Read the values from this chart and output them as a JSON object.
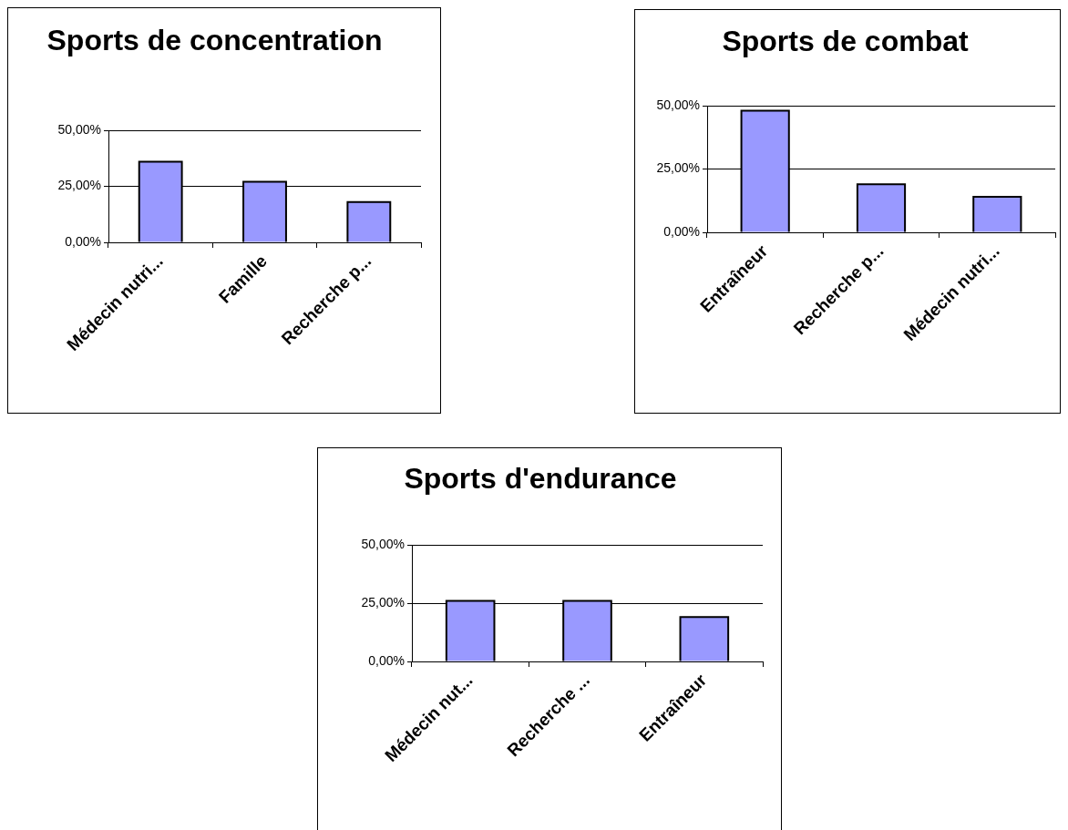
{
  "chart_data": [
    {
      "type": "bar",
      "title": "Sports de concentration",
      "categories": [
        "Médecin nutri...",
        "Famille",
        "Recherche p..."
      ],
      "values": [
        36,
        27,
        18
      ],
      "color": "#9999ff",
      "ylim": [
        0,
        50
      ],
      "yticks": [
        {
          "value": 0,
          "label": "0,00%"
        },
        {
          "value": 25,
          "label": "25,00%"
        },
        {
          "value": 50,
          "label": "50,00%"
        }
      ],
      "grid": "y"
    },
    {
      "type": "bar",
      "title": "Sports de combat",
      "categories": [
        "Entraîneur",
        "Recherche p...",
        "Médecin nutri..."
      ],
      "values": [
        48,
        19,
        14
      ],
      "color": "#9999ff",
      "ylim": [
        0,
        50
      ],
      "yticks": [
        {
          "value": 0,
          "label": "0,00%"
        },
        {
          "value": 25,
          "label": "25,00%"
        },
        {
          "value": 50,
          "label": "50,00%"
        }
      ],
      "grid": "y"
    },
    {
      "type": "bar",
      "title": "Sports d'endurance",
      "categories": [
        "Médecin nut...",
        "Recherche ...",
        "Entraîneur"
      ],
      "values": [
        26,
        26,
        19
      ],
      "color": "#9999ff",
      "ylim": [
        0,
        50
      ],
      "yticks": [
        {
          "value": 0,
          "label": "0,00%"
        },
        {
          "value": 25,
          "label": "25,00%"
        },
        {
          "value": 50,
          "label": "50,00%"
        }
      ],
      "grid": "y"
    }
  ]
}
